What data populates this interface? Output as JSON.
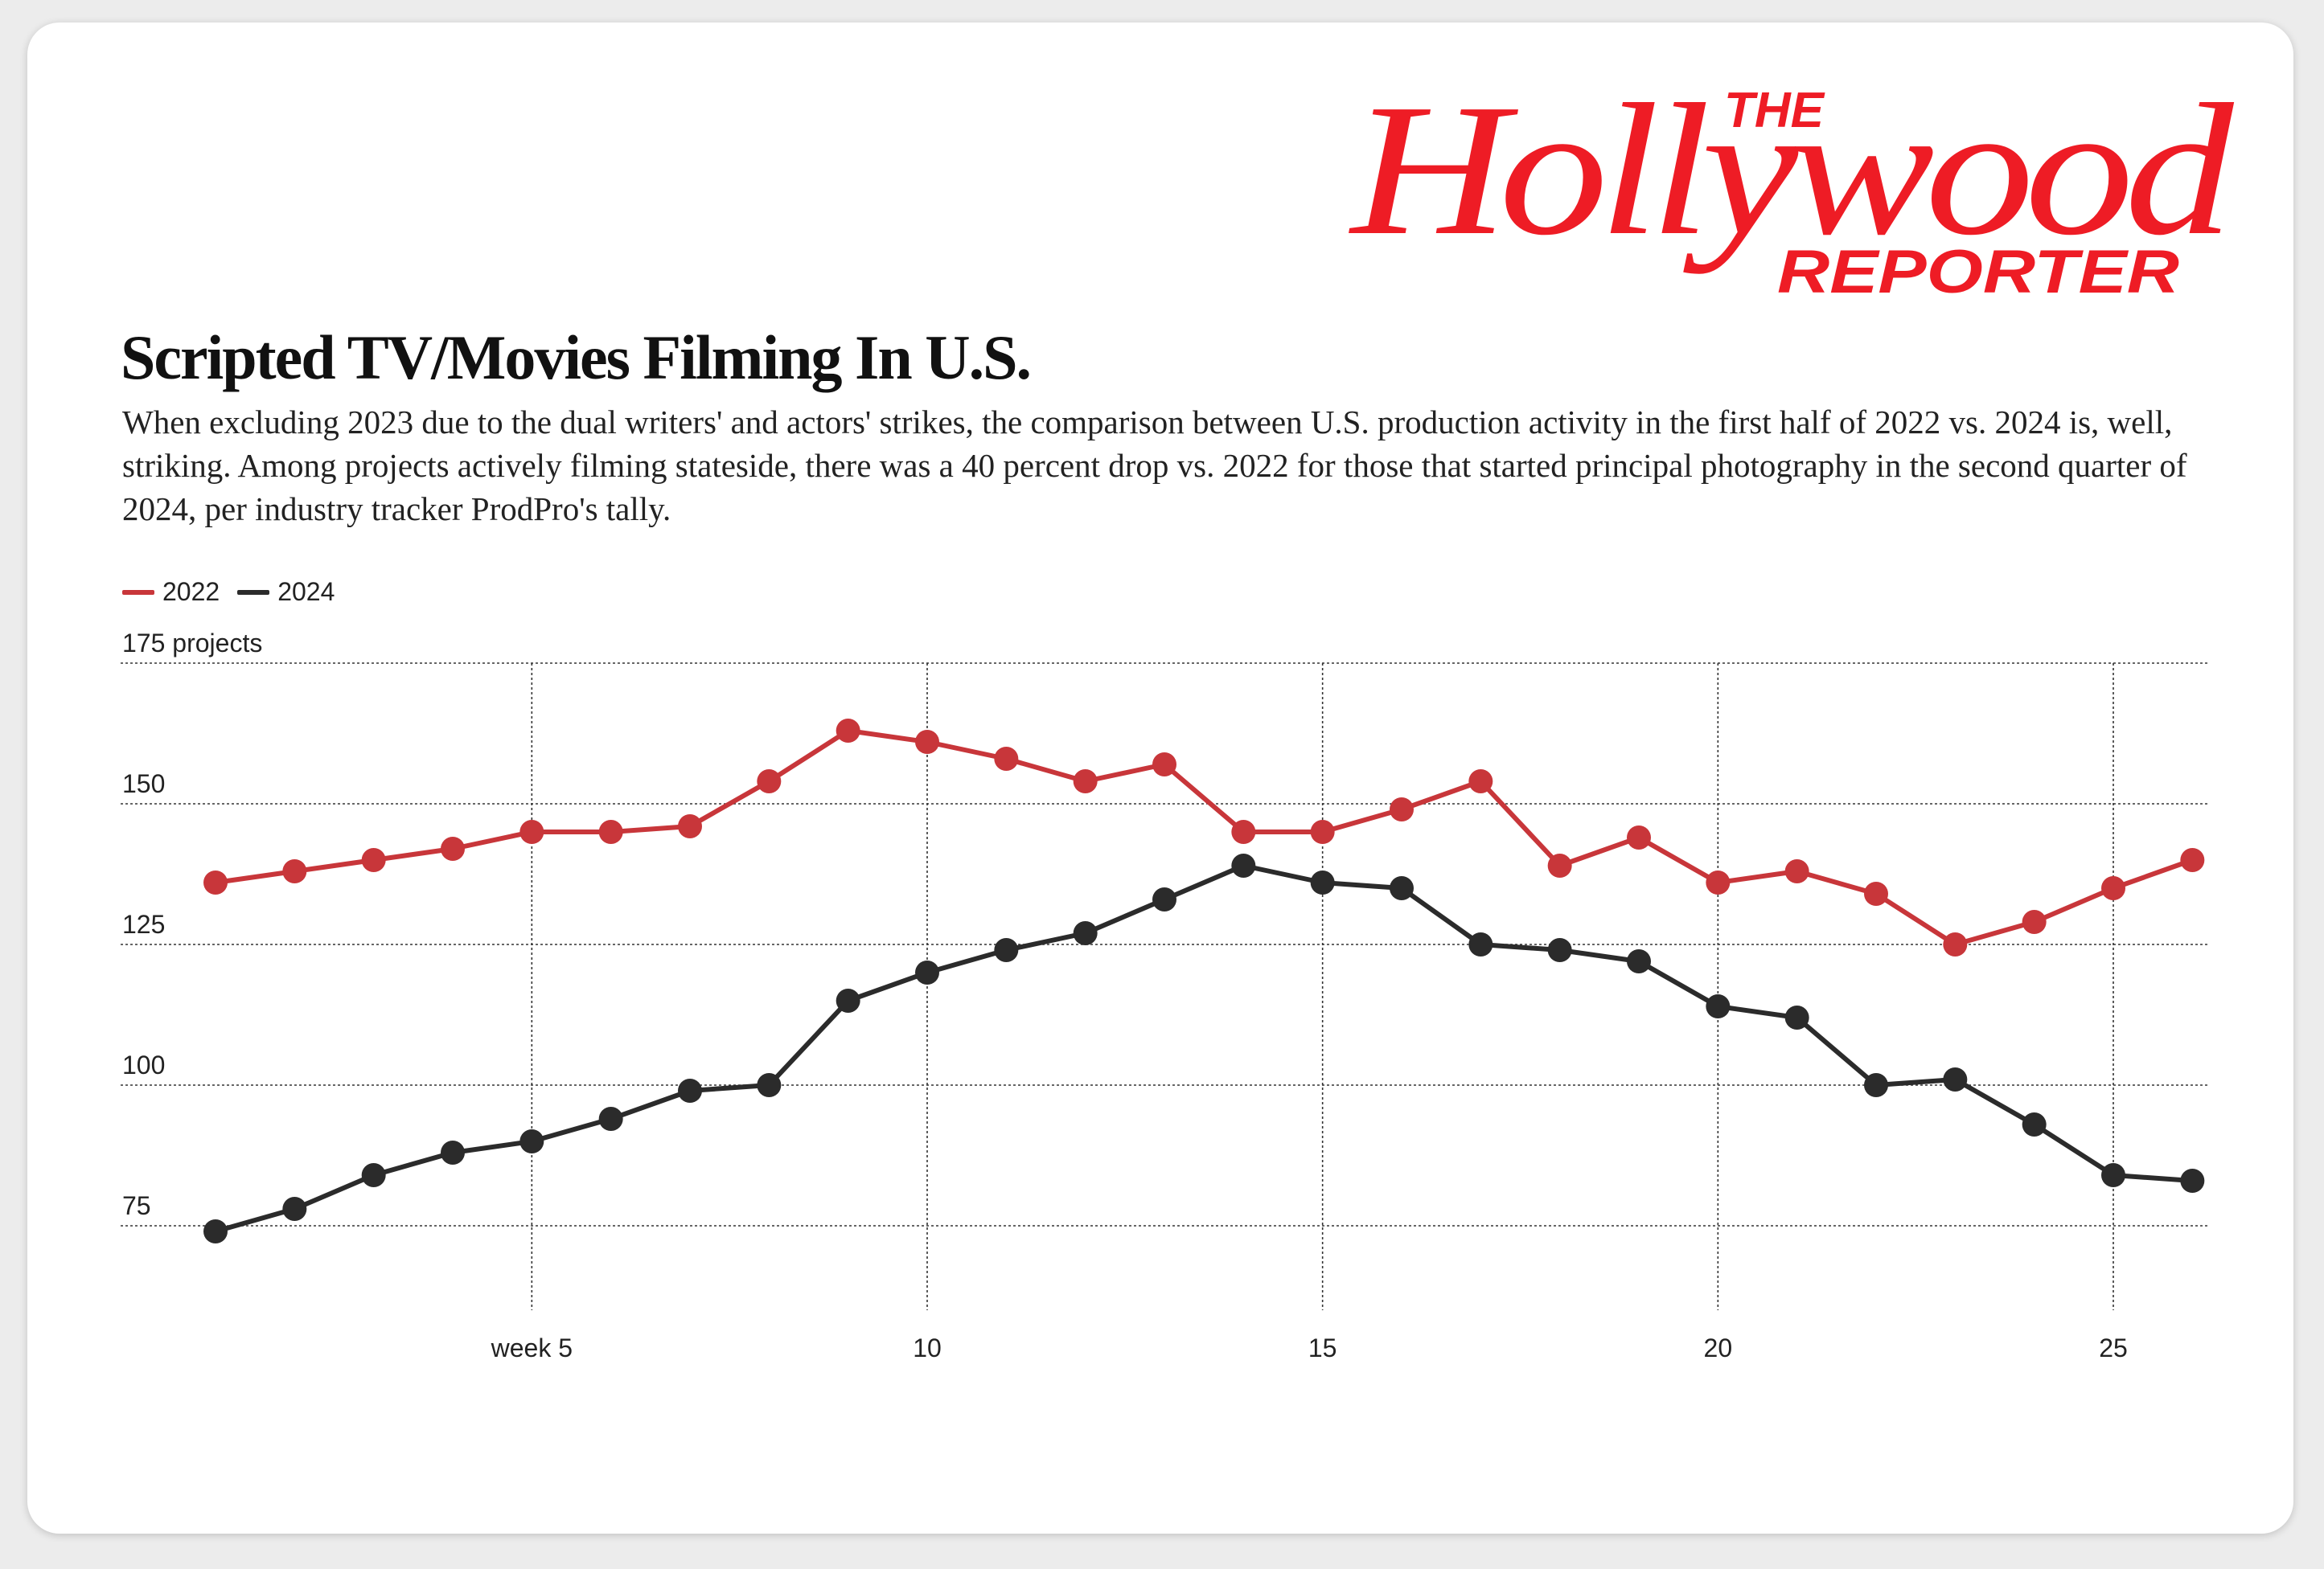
{
  "brand": {
    "name_line1": "THE",
    "name_line2": "Hollywood",
    "name_line3": "REPORTER",
    "color": "#ee1c25"
  },
  "header": {
    "title": "Scripted TV/Movies Filming In U.S.",
    "subtitle": "When excluding 2023 due to the dual writers' and actors' strikes, the comparison between U.S. production activity in the first half of 2022 vs. 2024 is, well, striking. Among projects actively filming stateside, there was a 40 percent drop vs. 2022 for those that started principal photography in the second quarter of 2024, per industry tracker ProdPro's tally."
  },
  "legend": [
    {
      "label": "2022",
      "color": "#c8363a"
    },
    {
      "label": "2024",
      "color": "#2b2b2b"
    }
  ],
  "chart_data": {
    "type": "line",
    "title": "Scripted TV/Movies Filming In U.S.",
    "xlabel": "",
    "ylabel": "projects",
    "x": [
      1,
      2,
      3,
      4,
      5,
      6,
      7,
      8,
      9,
      10,
      11,
      12,
      13,
      14,
      15,
      16,
      17,
      18,
      19,
      20,
      21,
      22,
      23,
      24,
      25,
      26
    ],
    "xlim": [
      -0.2,
      26.2
    ],
    "ylim": [
      60,
      176
    ],
    "x_ticks": [
      {
        "value": 5,
        "label": "week 5"
      },
      {
        "value": 10,
        "label": "10"
      },
      {
        "value": 15,
        "label": "15"
      },
      {
        "value": 20,
        "label": "20"
      },
      {
        "value": 25,
        "label": "25"
      }
    ],
    "y_ticks": [
      {
        "value": 175,
        "label": "175 projects"
      },
      {
        "value": 150,
        "label": "150"
      },
      {
        "value": 125,
        "label": "125"
      },
      {
        "value": 100,
        "label": "100"
      },
      {
        "value": 75,
        "label": "75"
      }
    ],
    "grid": true,
    "legend_position": "top-left",
    "series": [
      {
        "name": "2022",
        "color": "#c8363a",
        "values": [
          136,
          138,
          140,
          142,
          145,
          145,
          146,
          154,
          163,
          161,
          158,
          154,
          157,
          145,
          145,
          149,
          154,
          139,
          144,
          136,
          138,
          134,
          125,
          129,
          135,
          140
        ]
      },
      {
        "name": "2024",
        "color": "#2b2b2b",
        "values": [
          74,
          78,
          84,
          88,
          90,
          94,
          99,
          100,
          115,
          120,
          124,
          127,
          133,
          139,
          136,
          135,
          125,
          124,
          122,
          114,
          112,
          100,
          101,
          93,
          84,
          83
        ]
      }
    ]
  }
}
